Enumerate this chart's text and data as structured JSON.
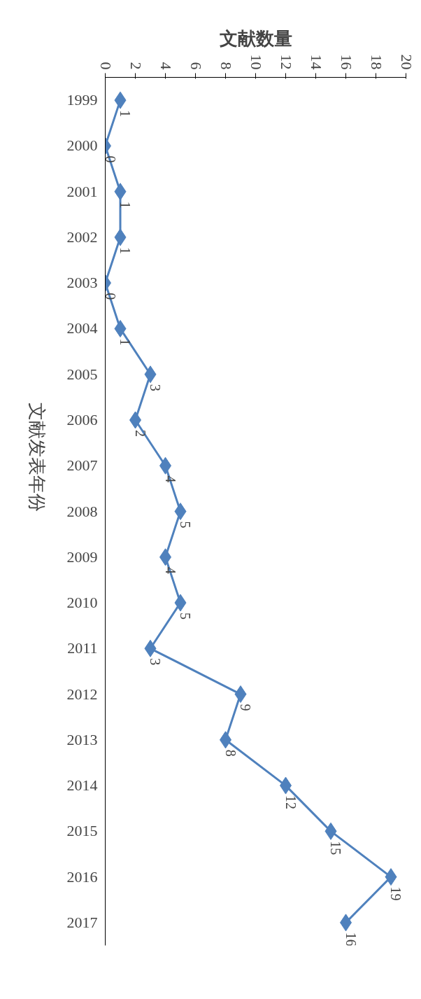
{
  "chart_data": {
    "type": "line",
    "orientation": "horizontal",
    "xlabel": "文献数量",
    "ylabel": "文献发表年份",
    "categories": [
      "1999",
      "2000",
      "2001",
      "2002",
      "2003",
      "2004",
      "2005",
      "2006",
      "2007",
      "2008",
      "2009",
      "2010",
      "2011",
      "2012",
      "2013",
      "2014",
      "2015",
      "2016",
      "2017"
    ],
    "series": [
      {
        "color": "#4f81bd",
        "values": [
          1,
          0,
          1,
          1,
          0,
          1,
          3,
          2,
          4,
          5,
          4,
          5,
          3,
          9,
          8,
          12,
          15,
          19,
          16
        ]
      }
    ],
    "xlim": [
      0,
      20
    ],
    "xticks": [
      0,
      2,
      4,
      6,
      8,
      10,
      12,
      14,
      16,
      18,
      20
    ],
    "data_labels": true,
    "marker": "diamond",
    "line_style": "solid",
    "grid": false
  }
}
